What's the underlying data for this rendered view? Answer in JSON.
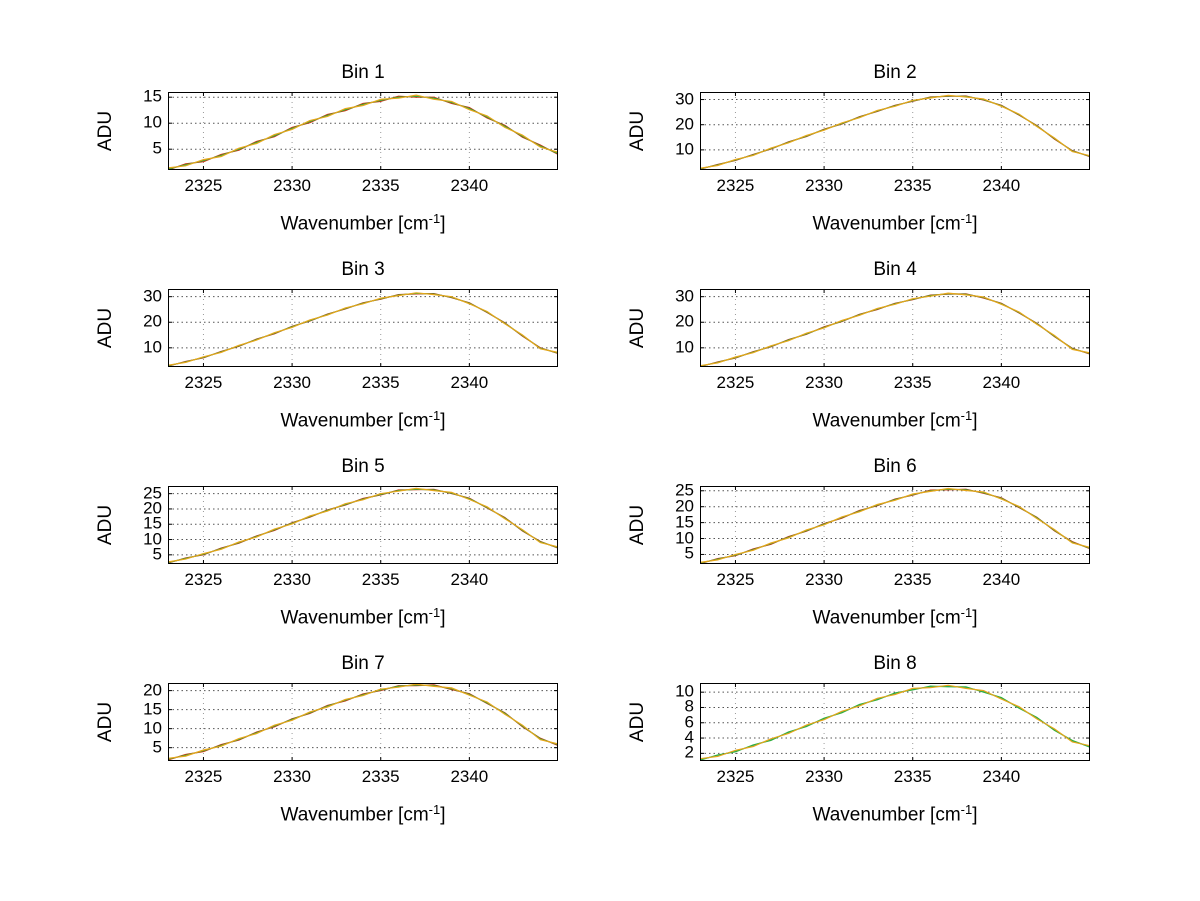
{
  "window": {
    "background": "#ffffff"
  },
  "labels": {
    "ylabel": "ADU",
    "xlabel_full": "Wavenumber [cm⁻¹]",
    "xlabel_pre": "Wavenumber [cm",
    "xlabel_sup": "-1",
    "xlabel_post": "]"
  },
  "colors": {
    "red": "#cc3311",
    "green": "#2fae3c",
    "yellow": "#e8a519",
    "cyan": "#00b2c8"
  },
  "chart_data": [
    {
      "type": "line",
      "title": "Bin 1",
      "xlabel": "Wavenumber [cm⁻¹]",
      "ylabel": "ADU",
      "grid": true,
      "legend": "none",
      "xlim": [
        2323,
        2345
      ],
      "ylim": [
        1,
        16
      ],
      "x_ticks": [
        2325,
        2330,
        2335,
        2340
      ],
      "y_ticks": [
        5,
        10,
        15
      ],
      "x": [
        2323,
        2324,
        2325,
        2326,
        2327,
        2328,
        2329,
        2330,
        2331,
        2332,
        2333,
        2334,
        2335,
        2336,
        2337,
        2338,
        2339,
        2340,
        2341,
        2342,
        2343,
        2344,
        2345
      ],
      "series": [
        {
          "name": "trace-red",
          "color": "#cc3311",
          "values": [
            1.0,
            2.2,
            2.6,
            4.0,
            4.8,
            6.5,
            7.4,
            9.2,
            10.1,
            11.7,
            12.4,
            13.8,
            14.2,
            15.2,
            15.0,
            15.0,
            13.8,
            13.0,
            11.0,
            9.6,
            7.3,
            5.8,
            4.0
          ]
        },
        {
          "name": "trace-green",
          "color": "#2fae3c",
          "values": [
            1.2,
            2.0,
            2.8,
            3.8,
            5.0,
            6.3,
            7.6,
            9.0,
            10.3,
            11.5,
            12.6,
            13.6,
            14.4,
            15.0,
            15.2,
            14.8,
            14.0,
            12.8,
            11.2,
            9.4,
            7.5,
            5.6,
            4.2
          ]
        },
        {
          "name": "trace-yellow",
          "color": "#e8a519",
          "values": [
            1.4,
            1.8,
            3.0,
            3.6,
            5.2,
            6.1,
            7.8,
            8.8,
            10.5,
            11.3,
            12.8,
            13.4,
            14.6,
            14.8,
            15.4,
            14.6,
            14.2,
            12.6,
            11.4,
            9.2,
            7.7,
            5.4,
            4.4
          ]
        }
      ]
    },
    {
      "type": "line",
      "title": "Bin 2",
      "xlabel": "Wavenumber [cm⁻¹]",
      "ylabel": "ADU",
      "grid": true,
      "legend": "none",
      "xlim": [
        2323,
        2345
      ],
      "ylim": [
        2,
        33
      ],
      "x_ticks": [
        2325,
        2330,
        2335,
        2340
      ],
      "y_ticks": [
        10,
        20,
        30
      ],
      "x": [
        2323,
        2324,
        2325,
        2326,
        2327,
        2328,
        2329,
        2330,
        2331,
        2332,
        2333,
        2334,
        2335,
        2336,
        2337,
        2338,
        2339,
        2340,
        2341,
        2342,
        2343,
        2344,
        2345
      ],
      "series": [
        {
          "name": "trace-red",
          "color": "#cc3311",
          "values": [
            2.3,
            4.2,
            5.8,
            8.2,
            10.3,
            13.2,
            15.3,
            18.2,
            20.3,
            23.2,
            25.3,
            27.7,
            29.3,
            31.0,
            31.3,
            31.4,
            29.8,
            27.7,
            23.8,
            19.7,
            14.3,
            9.7,
            7.3
          ]
        },
        {
          "name": "trace-green",
          "color": "#2fae3c",
          "values": [
            2.5,
            4.0,
            6.0,
            8.0,
            10.5,
            13.0,
            15.5,
            18.0,
            20.5,
            23.0,
            25.5,
            27.5,
            29.5,
            30.8,
            31.5,
            31.2,
            30.0,
            27.5,
            24.0,
            19.5,
            14.5,
            9.5,
            7.5
          ]
        },
        {
          "name": "trace-yellow",
          "color": "#e8a519",
          "values": [
            2.7,
            3.8,
            6.2,
            7.8,
            10.7,
            12.8,
            15.7,
            17.8,
            20.7,
            22.8,
            25.7,
            27.3,
            29.7,
            30.6,
            31.7,
            31.0,
            30.2,
            27.3,
            24.2,
            19.3,
            14.7,
            9.3,
            7.7
          ]
        }
      ]
    },
    {
      "type": "line",
      "title": "Bin 3",
      "xlabel": "Wavenumber [cm⁻¹]",
      "ylabel": "ADU",
      "grid": true,
      "legend": "none",
      "xlim": [
        2323,
        2345
      ],
      "ylim": [
        2.5,
        33
      ],
      "x_ticks": [
        2325,
        2330,
        2335,
        2340
      ],
      "y_ticks": [
        10,
        20,
        30
      ],
      "x": [
        2323,
        2324,
        2325,
        2326,
        2327,
        2328,
        2329,
        2330,
        2331,
        2332,
        2333,
        2334,
        2335,
        2336,
        2337,
        2338,
        2339,
        2340,
        2341,
        2342,
        2343,
        2344,
        2345
      ],
      "series": [
        {
          "name": "trace-red",
          "color": "#cc3311",
          "values": [
            2.8,
            4.7,
            6.1,
            8.6,
            10.6,
            13.4,
            15.5,
            18.4,
            20.5,
            23.2,
            25.2,
            27.6,
            29.0,
            30.8,
            31.1,
            31.2,
            29.6,
            27.6,
            23.8,
            19.8,
            14.6,
            10.0,
            7.8
          ]
        },
        {
          "name": "trace-green",
          "color": "#2fae3c",
          "values": [
            3.0,
            4.5,
            6.3,
            8.4,
            10.8,
            13.2,
            15.7,
            18.2,
            20.7,
            23.0,
            25.4,
            27.4,
            29.2,
            30.6,
            31.3,
            31.0,
            29.8,
            27.4,
            24.0,
            19.6,
            14.8,
            9.8,
            8.0
          ]
        },
        {
          "name": "trace-yellow",
          "color": "#e8a519",
          "values": [
            3.2,
            4.3,
            6.5,
            8.2,
            11.0,
            13.0,
            15.9,
            18.0,
            20.9,
            22.8,
            25.6,
            27.2,
            29.4,
            30.4,
            31.5,
            30.8,
            30.0,
            27.2,
            24.2,
            19.4,
            15.0,
            9.6,
            8.2
          ]
        }
      ]
    },
    {
      "type": "line",
      "title": "Bin 4",
      "xlabel": "Wavenumber [cm⁻¹]",
      "ylabel": "ADU",
      "grid": true,
      "legend": "none",
      "xlim": [
        2323,
        2345
      ],
      "ylim": [
        2.5,
        33
      ],
      "x_ticks": [
        2325,
        2330,
        2335,
        2340
      ],
      "y_ticks": [
        10,
        20,
        30
      ],
      "x": [
        2323,
        2324,
        2325,
        2326,
        2327,
        2328,
        2329,
        2330,
        2331,
        2332,
        2333,
        2334,
        2335,
        2336,
        2337,
        2338,
        2339,
        2340,
        2341,
        2342,
        2343,
        2344,
        2345
      ],
      "series": [
        {
          "name": "trace-red",
          "color": "#cc3311",
          "values": [
            2.6,
            4.5,
            6.0,
            8.5,
            10.4,
            13.2,
            15.3,
            18.2,
            20.3,
            23.1,
            25.0,
            27.4,
            28.8,
            30.6,
            31.0,
            31.1,
            29.5,
            27.4,
            23.6,
            19.6,
            14.4,
            9.8,
            7.6
          ]
        },
        {
          "name": "trace-green",
          "color": "#2fae3c",
          "values": [
            2.8,
            4.3,
            6.2,
            8.3,
            10.6,
            13.0,
            15.5,
            18.0,
            20.5,
            22.9,
            25.2,
            27.2,
            29.0,
            30.4,
            31.2,
            30.9,
            29.7,
            27.2,
            23.8,
            19.4,
            14.6,
            9.6,
            7.8
          ]
        },
        {
          "name": "trace-yellow",
          "color": "#e8a519",
          "values": [
            3.0,
            4.1,
            6.4,
            8.1,
            10.8,
            12.8,
            15.7,
            17.8,
            20.7,
            22.7,
            25.4,
            27.0,
            29.2,
            30.2,
            31.4,
            30.7,
            29.9,
            27.0,
            24.0,
            19.2,
            14.8,
            9.4,
            8.0
          ]
        }
      ]
    },
    {
      "type": "line",
      "title": "Bin 5",
      "xlabel": "Wavenumber [cm⁻¹]",
      "ylabel": "ADU",
      "grid": true,
      "legend": "none",
      "xlim": [
        2323,
        2345
      ],
      "ylim": [
        2,
        27.5
      ],
      "x_ticks": [
        2325,
        2330,
        2335,
        2340
      ],
      "y_ticks": [
        5,
        10,
        15,
        20,
        25
      ],
      "x": [
        2323,
        2324,
        2325,
        2326,
        2327,
        2328,
        2329,
        2330,
        2331,
        2332,
        2333,
        2334,
        2335,
        2336,
        2337,
        2338,
        2339,
        2340,
        2341,
        2342,
        2343,
        2344,
        2345
      ],
      "series": [
        {
          "name": "trace-red",
          "color": "#cc3311",
          "values": [
            2.3,
            4.0,
            5.0,
            7.2,
            8.8,
            11.2,
            13.0,
            15.5,
            17.3,
            19.7,
            21.3,
            23.4,
            24.6,
            26.2,
            26.3,
            26.4,
            25.0,
            23.5,
            20.3,
            17.2,
            12.8,
            9.4,
            7.2
          ]
        },
        {
          "name": "trace-green",
          "color": "#2fae3c",
          "values": [
            2.5,
            3.8,
            5.2,
            7.0,
            9.0,
            11.0,
            13.2,
            15.3,
            17.5,
            19.5,
            21.5,
            23.2,
            24.8,
            26.0,
            26.5,
            26.2,
            25.2,
            23.3,
            20.5,
            17.0,
            13.0,
            9.2,
            7.4
          ]
        },
        {
          "name": "trace-yellow",
          "color": "#e8a519",
          "values": [
            2.7,
            3.6,
            5.4,
            6.8,
            9.2,
            10.8,
            13.4,
            15.1,
            17.7,
            19.3,
            21.7,
            23.0,
            25.0,
            25.8,
            26.7,
            26.0,
            25.4,
            23.1,
            20.7,
            16.8,
            13.2,
            9.0,
            7.6
          ]
        }
      ]
    },
    {
      "type": "line",
      "title": "Bin 6",
      "xlabel": "Wavenumber [cm⁻¹]",
      "ylabel": "ADU",
      "grid": true,
      "legend": "none",
      "xlim": [
        2323,
        2345
      ],
      "ylim": [
        2,
        26.5
      ],
      "x_ticks": [
        2325,
        2330,
        2335,
        2340
      ],
      "y_ticks": [
        5,
        10,
        15,
        20,
        25
      ],
      "x": [
        2323,
        2324,
        2325,
        2326,
        2327,
        2328,
        2329,
        2330,
        2331,
        2332,
        2333,
        2334,
        2335,
        2336,
        2337,
        2338,
        2339,
        2340,
        2341,
        2342,
        2343,
        2344,
        2345
      ],
      "series": [
        {
          "name": "trace-red",
          "color": "#cc3311",
          "values": [
            2.1,
            3.7,
            4.6,
            6.7,
            8.2,
            10.6,
            12.3,
            14.7,
            16.4,
            18.8,
            20.3,
            22.4,
            23.6,
            25.2,
            25.3,
            25.5,
            24.2,
            22.8,
            19.7,
            16.7,
            12.4,
            9.0,
            6.8
          ]
        },
        {
          "name": "trace-green",
          "color": "#2fae3c",
          "values": [
            2.3,
            3.5,
            4.8,
            6.5,
            8.4,
            10.4,
            12.5,
            14.5,
            16.6,
            18.6,
            20.5,
            22.2,
            23.8,
            25.0,
            25.5,
            25.3,
            24.4,
            22.6,
            19.9,
            16.5,
            12.6,
            8.8,
            7.0
          ]
        },
        {
          "name": "trace-yellow",
          "color": "#e8a519",
          "values": [
            2.5,
            3.3,
            5.0,
            6.3,
            8.6,
            10.2,
            12.7,
            14.3,
            16.8,
            18.4,
            20.7,
            22.0,
            24.0,
            24.8,
            25.7,
            25.1,
            24.6,
            22.4,
            20.1,
            16.3,
            12.8,
            8.6,
            7.2
          ]
        }
      ]
    },
    {
      "type": "line",
      "title": "Bin 7",
      "xlabel": "Wavenumber [cm⁻¹]",
      "ylabel": "ADU",
      "grid": true,
      "legend": "none",
      "xlim": [
        2323,
        2345
      ],
      "ylim": [
        1.5,
        22
      ],
      "x_ticks": [
        2325,
        2330,
        2335,
        2340
      ],
      "y_ticks": [
        5,
        10,
        15,
        20
      ],
      "x": [
        2323,
        2324,
        2325,
        2326,
        2327,
        2328,
        2329,
        2330,
        2331,
        2332,
        2333,
        2334,
        2335,
        2336,
        2337,
        2338,
        2339,
        2340,
        2341,
        2342,
        2343,
        2344,
        2345
      ],
      "series": [
        {
          "name": "trace-red",
          "color": "#cc3311",
          "values": [
            1.8,
            3.2,
            4.0,
            5.8,
            7.0,
            9.1,
            10.5,
            12.6,
            14.0,
            16.1,
            17.3,
            19.1,
            20.0,
            21.3,
            21.3,
            21.5,
            20.3,
            19.2,
            16.6,
            14.2,
            10.5,
            7.5,
            5.6
          ]
        },
        {
          "name": "trace-green",
          "color": "#2fae3c",
          "values": [
            2.0,
            3.0,
            4.2,
            5.6,
            7.2,
            8.9,
            10.7,
            12.4,
            14.2,
            15.9,
            17.5,
            18.9,
            20.2,
            21.1,
            21.5,
            21.3,
            20.5,
            19.0,
            16.8,
            14.0,
            10.7,
            7.3,
            5.8
          ]
        },
        {
          "name": "trace-yellow",
          "color": "#e8a519",
          "values": [
            2.2,
            2.8,
            4.4,
            5.4,
            7.4,
            8.7,
            10.9,
            12.2,
            14.4,
            15.7,
            17.7,
            18.7,
            20.4,
            20.9,
            21.7,
            21.1,
            20.7,
            18.8,
            17.0,
            13.8,
            10.9,
            7.1,
            6.0
          ]
        }
      ]
    },
    {
      "type": "line",
      "title": "Bin 8",
      "xlabel": "Wavenumber [cm⁻¹]",
      "ylabel": "ADU",
      "grid": true,
      "legend": "none",
      "xlim": [
        2323,
        2345
      ],
      "ylim": [
        1,
        11.2
      ],
      "x_ticks": [
        2325,
        2330,
        2335,
        2340
      ],
      "y_ticks": [
        2,
        4,
        6,
        8,
        10
      ],
      "x": [
        2323,
        2324,
        2325,
        2326,
        2327,
        2328,
        2329,
        2330,
        2331,
        2332,
        2333,
        2334,
        2335,
        2336,
        2337,
        2338,
        2339,
        2340,
        2341,
        2342,
        2343,
        2344,
        2345
      ],
      "series": [
        {
          "name": "trace-cyan",
          "color": "#00b2c8",
          "values": [
            1.2,
            1.7,
            2.3,
            3.0,
            3.8,
            4.7,
            5.6,
            6.5,
            7.4,
            8.3,
            9.1,
            9.8,
            10.4,
            10.7,
            10.8,
            10.6,
            10.1,
            9.2,
            8.0,
            6.6,
            5.1,
            3.6,
            2.9
          ]
        },
        {
          "name": "trace-green",
          "color": "#2fae3c",
          "values": [
            1.1,
            1.8,
            2.2,
            3.1,
            3.7,
            4.8,
            5.5,
            6.6,
            7.3,
            8.4,
            9.0,
            9.9,
            10.3,
            10.8,
            10.7,
            10.7,
            10.0,
            9.3,
            7.9,
            6.7,
            5.0,
            3.7,
            2.8
          ]
        },
        {
          "name": "trace-yellow",
          "color": "#e8a519",
          "values": [
            1.3,
            1.6,
            2.4,
            2.9,
            3.9,
            4.6,
            5.7,
            6.4,
            7.5,
            8.2,
            9.2,
            9.7,
            10.5,
            10.6,
            10.9,
            10.5,
            10.2,
            9.1,
            8.1,
            6.5,
            5.2,
            3.5,
            3.0
          ]
        }
      ]
    }
  ]
}
